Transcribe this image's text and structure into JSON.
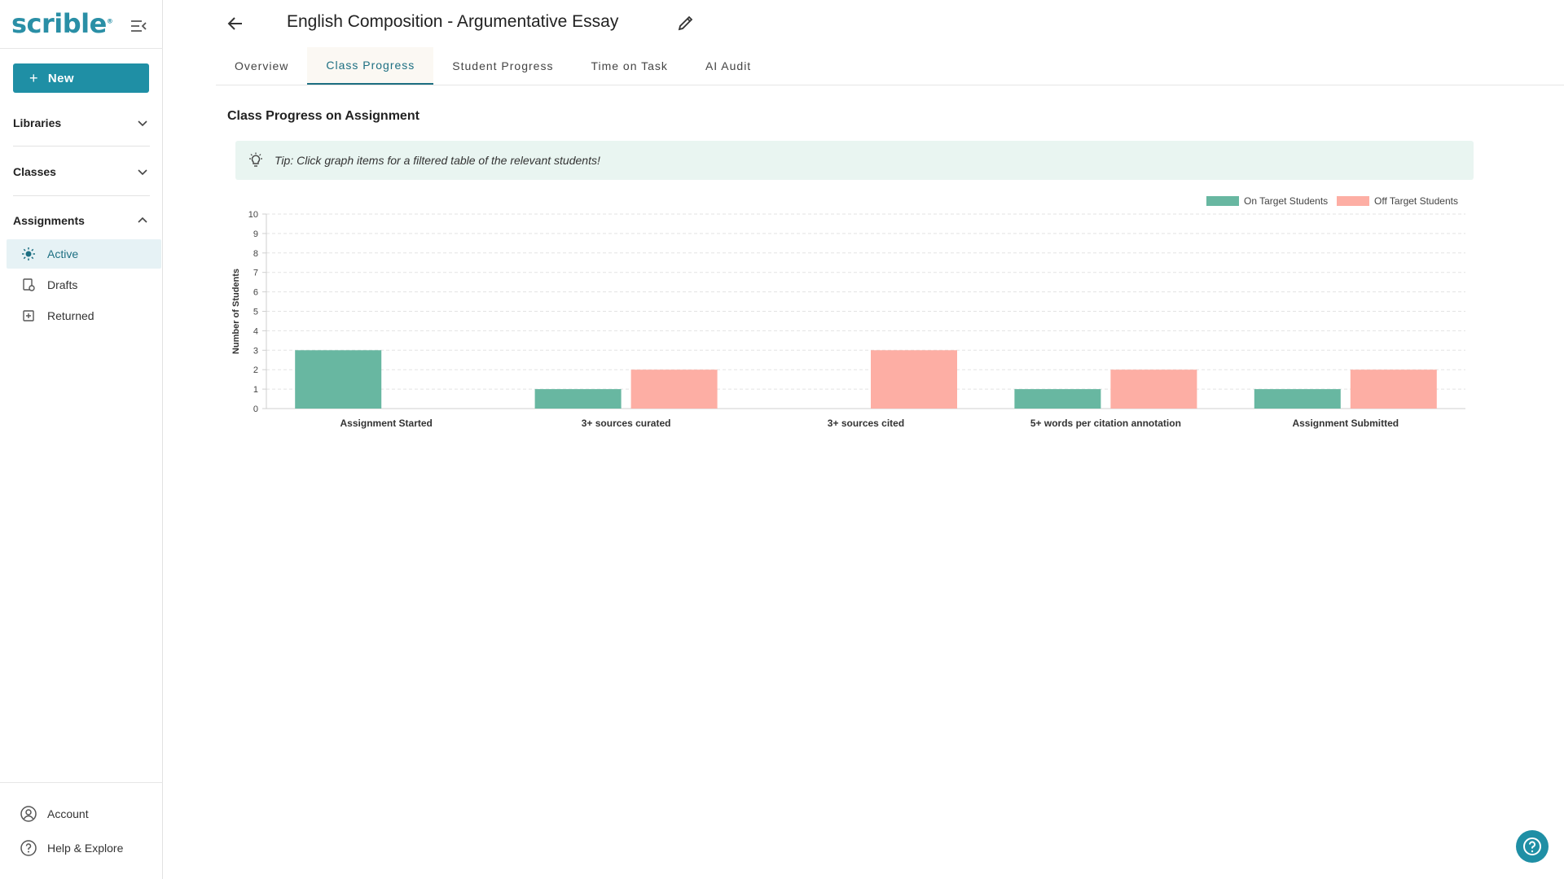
{
  "sidebar": {
    "logo": "scrible",
    "logo_mark": "®",
    "new_label": "New",
    "sections": [
      {
        "label": "Libraries",
        "expanded": false
      },
      {
        "label": "Classes",
        "expanded": false
      },
      {
        "label": "Assignments",
        "expanded": true
      }
    ],
    "assignment_items": [
      {
        "label": "Active",
        "icon": "sun-icon",
        "active": true
      },
      {
        "label": "Drafts",
        "icon": "drafts-icon",
        "active": false
      },
      {
        "label": "Returned",
        "icon": "returned-icon",
        "active": false
      }
    ],
    "bottom_items": [
      {
        "label": "Account",
        "icon": "account-icon"
      },
      {
        "label": "Help & Explore",
        "icon": "help-icon"
      }
    ]
  },
  "header": {
    "title": "English Composition - Argumentative Essay",
    "tabs": [
      {
        "label": "Overview",
        "active": false
      },
      {
        "label": "Class Progress",
        "active": true
      },
      {
        "label": "Student Progress",
        "active": false
      },
      {
        "label": "Time on Task",
        "active": false
      },
      {
        "label": "AI Audit",
        "active": false
      }
    ]
  },
  "main": {
    "section_title": "Class Progress on Assignment",
    "tip_text": "Tip: Click graph items for a filtered table of the relevant students!"
  },
  "colors": {
    "brand": "#1f8fa5",
    "on_target": "#68b7a1",
    "off_target": "#fdaea4",
    "tip_bg": "#e9f5f1"
  },
  "chart_data": {
    "type": "bar",
    "title": "",
    "xlabel": "",
    "ylabel": "Number of Students",
    "ylim": [
      0,
      10
    ],
    "y_ticks": [
      0,
      1,
      2,
      3,
      4,
      5,
      6,
      7,
      8,
      9,
      10
    ],
    "categories": [
      "Assignment Started",
      "3+ sources curated",
      "3+ sources cited",
      "5+ words per citation annotation",
      "Assignment Submitted"
    ],
    "series": [
      {
        "name": "On Target Students",
        "color": "#68b7a1",
        "values": [
          3,
          1,
          0,
          1,
          1
        ]
      },
      {
        "name": "Off Target Students",
        "color": "#fdaea4",
        "values": [
          0,
          2,
          3,
          2,
          2
        ]
      }
    ],
    "grid": true,
    "legend": "top-right"
  }
}
